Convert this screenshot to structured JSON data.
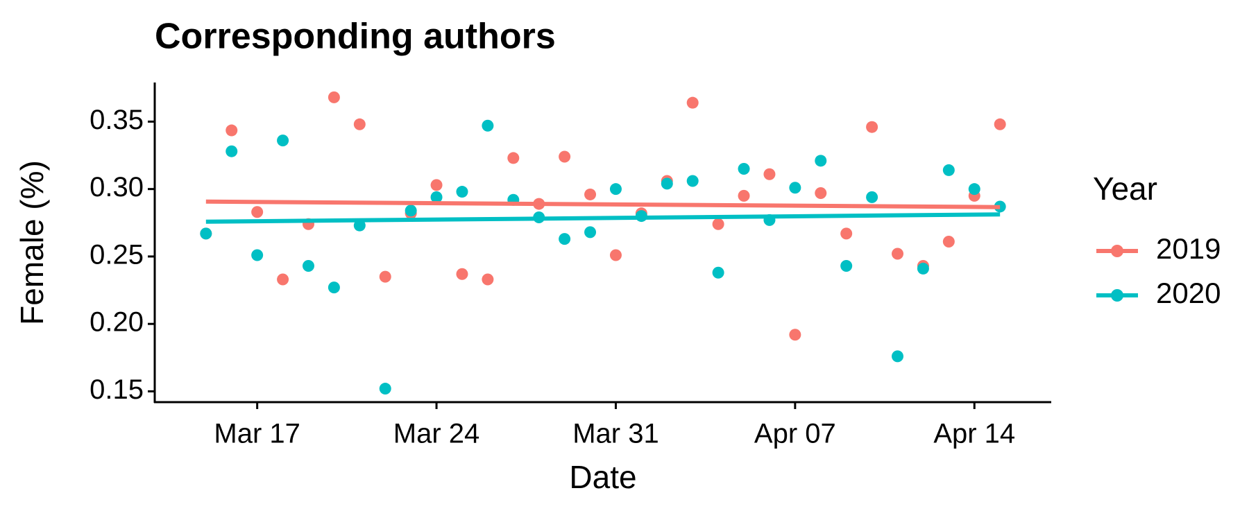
{
  "chart_data": {
    "type": "scatter",
    "title": "Corresponding authors",
    "x_label": "Date",
    "y_label": "Female (%)",
    "legend_title": "Year",
    "legend": "right",
    "x": [
      "Mar 15",
      "Mar 16",
      "Mar 17",
      "Mar 18",
      "Mar 19",
      "Mar 20",
      "Mar 21",
      "Mar 22",
      "Mar 23",
      "Mar 24",
      "Mar 25",
      "Mar 26",
      "Mar 27",
      "Mar 28",
      "Mar 29",
      "Mar 30",
      "Mar 31",
      "Apr 01",
      "Apr 02",
      "Apr 03",
      "Apr 04",
      "Apr 05",
      "Apr 06",
      "Apr 07",
      "Apr 08",
      "Apr 09",
      "Apr 10",
      "Apr 11",
      "Apr 12",
      "Apr 13",
      "Apr 14",
      "Apr 15"
    ],
    "xlim": [
      "Mar 13",
      "Apr 17"
    ],
    "xticks": [
      "Mar 17",
      "Mar 24",
      "Mar 31",
      "Apr 07",
      "Apr 14"
    ],
    "ylim": [
      0.142,
      0.379
    ],
    "yticks": [
      0.15,
      {
        "value": 0.2,
        "label": "0.20"
      },
      0.25,
      {
        "value": 0.3,
        "label": "0.30"
      },
      0.35
    ],
    "series": [
      {
        "name": "2019",
        "color": "#f8766d",
        "values": [
          0.267,
          0.3435,
          0.283,
          0.233,
          0.274,
          0.368,
          0.348,
          0.235,
          0.282,
          0.303,
          0.237,
          0.233,
          0.323,
          0.289,
          0.324,
          0.296,
          0.251,
          0.282,
          0.306,
          0.364,
          0.274,
          0.295,
          0.311,
          0.192,
          0.297,
          0.267,
          0.346,
          0.252,
          0.243,
          0.261,
          0.295,
          0.348
        ],
        "trend": [
          0.2907,
          0.2866
        ]
      },
      {
        "name": "2020",
        "color": "#00bfc4",
        "values": [
          0.267,
          0.328,
          0.251,
          0.336,
          0.243,
          0.227,
          0.273,
          0.152,
          0.284,
          0.294,
          0.298,
          0.347,
          0.292,
          0.279,
          0.263,
          0.268,
          0.3,
          0.28,
          0.304,
          0.306,
          0.238,
          0.315,
          0.277,
          0.301,
          0.321,
          0.243,
          0.294,
          0.176,
          0.241,
          0.314,
          0.3,
          0.287
        ],
        "trend": [
          0.2758,
          0.2812
        ]
      }
    ]
  }
}
